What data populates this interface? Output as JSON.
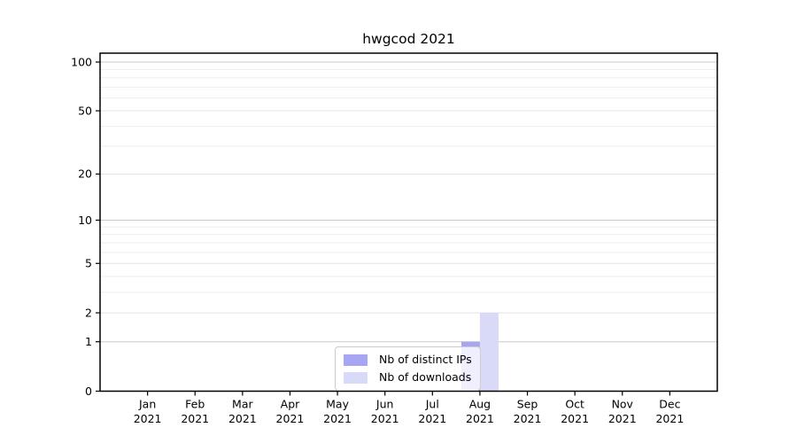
{
  "chart_data": {
    "type": "bar",
    "title": "hwgcod 2021",
    "categories": [
      "Jan",
      "Feb",
      "Mar",
      "Apr",
      "May",
      "Jun",
      "Jul",
      "Aug",
      "Sep",
      "Oct",
      "Nov",
      "Dec"
    ],
    "x_tick_year": "2021",
    "series": [
      {
        "name": "Nb of distinct IPs",
        "color": "#a6a6f2",
        "values": [
          0,
          0,
          0,
          0,
          0,
          0,
          0,
          1,
          0,
          0,
          0,
          0
        ]
      },
      {
        "name": "Nb of downloads",
        "color": "#d9d9f8",
        "values": [
          0,
          0,
          0,
          0,
          0,
          0,
          0,
          2,
          0,
          0,
          0,
          0
        ]
      }
    ],
    "yscale": "log1p",
    "ylim": [
      0,
      113
    ],
    "y_major_ticks": [
      0,
      1,
      2,
      5,
      10,
      20,
      50,
      100
    ],
    "y_mid_ticks": [
      2,
      5,
      20,
      50
    ],
    "y_power_ticks": [
      1,
      10,
      100
    ],
    "y_minor_ticks": [
      3,
      4,
      6,
      7,
      8,
      9,
      30,
      40,
      60,
      70,
      80,
      90
    ],
    "grid": true,
    "legend_position": "lower center"
  },
  "colors": {
    "background": "#ffffff",
    "axis": "#000000",
    "text": "#000000",
    "grid_power": "#c9c9c9",
    "grid_mid": "#e3e3e3",
    "grid_minor": "#eeeeee",
    "legend_border": "#cccccc"
  }
}
